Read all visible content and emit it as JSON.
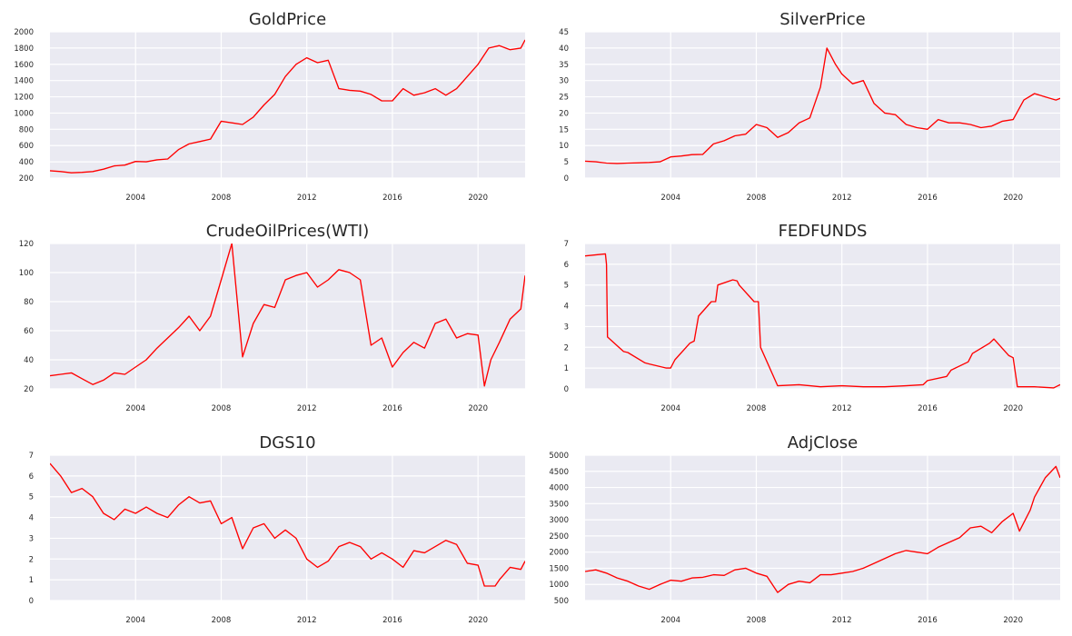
{
  "chart_data": [
    {
      "type": "line",
      "title": "GoldPrice",
      "grid": true,
      "xlim": [
        2000.0,
        2022.2
      ],
      "ylim": [
        200,
        2000
      ],
      "xticks": [
        2004,
        2008,
        2012,
        2016,
        2020
      ],
      "yticks": [
        200,
        400,
        600,
        800,
        1000,
        1200,
        1400,
        1600,
        1800,
        2000
      ],
      "color": "#ff0000",
      "x": [
        2000,
        2000.5,
        2001,
        2001.5,
        2002,
        2002.5,
        2003,
        2003.5,
        2004,
        2004.5,
        2005,
        2005.5,
        2006,
        2006.5,
        2007,
        2007.5,
        2008,
        2008.5,
        2009,
        2009.5,
        2010,
        2010.5,
        2011,
        2011.5,
        2012,
        2012.5,
        2013,
        2013.5,
        2014,
        2014.5,
        2015,
        2015.5,
        2016,
        2016.5,
        2017,
        2017.5,
        2018,
        2018.5,
        2019,
        2019.5,
        2020,
        2020.5,
        2021,
        2021.5,
        2022,
        2022.2
      ],
      "y": [
        290,
        280,
        265,
        270,
        280,
        310,
        350,
        360,
        405,
        400,
        425,
        435,
        550,
        620,
        650,
        680,
        900,
        880,
        860,
        950,
        1100,
        1230,
        1450,
        1600,
        1680,
        1620,
        1650,
        1300,
        1280,
        1270,
        1230,
        1150,
        1150,
        1300,
        1220,
        1250,
        1300,
        1220,
        1300,
        1450,
        1600,
        1800,
        1830,
        1780,
        1800,
        1900
      ]
    },
    {
      "type": "line",
      "title": "SilverPrice",
      "grid": true,
      "xlim": [
        2000.0,
        2022.2
      ],
      "ylim": [
        0,
        45
      ],
      "xticks": [
        2004,
        2008,
        2012,
        2016,
        2020
      ],
      "yticks": [
        0,
        5,
        10,
        15,
        20,
        25,
        30,
        35,
        40,
        45
      ],
      "color": "#ff0000",
      "x": [
        2000,
        2000.5,
        2001,
        2001.5,
        2002,
        2002.5,
        2003,
        2003.5,
        2004,
        2004.5,
        2005,
        2005.5,
        2006,
        2006.5,
        2007,
        2007.5,
        2008,
        2008.5,
        2009,
        2009.5,
        2010,
        2010.5,
        2011,
        2011.3,
        2011.7,
        2012,
        2012.5,
        2013,
        2013.5,
        2014,
        2014.5,
        2015,
        2015.5,
        2016,
        2016.5,
        2017,
        2017.5,
        2018,
        2018.5,
        2019,
        2019.5,
        2020,
        2020.5,
        2021,
        2021.5,
        2022,
        2022.2
      ],
      "y": [
        5.2,
        5.0,
        4.6,
        4.5,
        4.6,
        4.7,
        4.8,
        5.0,
        6.5,
        6.8,
        7.2,
        7.3,
        10.5,
        11.5,
        13.0,
        13.5,
        16.5,
        15.5,
        12.5,
        14.0,
        17.0,
        18.5,
        28.0,
        40.0,
        35.0,
        32.0,
        29.0,
        30.0,
        23.0,
        20.0,
        19.5,
        16.5,
        15.5,
        15.0,
        18.0,
        17.0,
        17.0,
        16.5,
        15.5,
        16.0,
        17.5,
        18.0,
        24.0,
        26.0,
        25.0,
        24.0,
        24.5
      ]
    },
    {
      "type": "line",
      "title": "CrudeOilPrices(WTI)",
      "grid": true,
      "xlim": [
        2000.0,
        2022.2
      ],
      "ylim": [
        20,
        120
      ],
      "xticks": [
        2004,
        2008,
        2012,
        2016,
        2020
      ],
      "yticks": [
        20,
        40,
        60,
        80,
        100,
        120
      ],
      "color": "#ff0000",
      "x": [
        2000,
        2000.5,
        2001,
        2001.5,
        2002,
        2002.5,
        2003,
        2003.5,
        2004,
        2004.5,
        2005,
        2005.5,
        2006,
        2006.5,
        2007,
        2007.5,
        2008,
        2008.5,
        2009,
        2009.5,
        2010,
        2010.5,
        2011,
        2011.5,
        2012,
        2012.5,
        2013,
        2013.5,
        2014,
        2014.5,
        2015,
        2015.5,
        2016,
        2016.5,
        2017,
        2017.5,
        2018,
        2018.5,
        2019,
        2019.5,
        2020,
        2020.3,
        2020.6,
        2021,
        2021.5,
        2022,
        2022.2
      ],
      "y": [
        29,
        30,
        31,
        27,
        23,
        26,
        31,
        30,
        35,
        40,
        48,
        55,
        62,
        70,
        60,
        70,
        95,
        120,
        42,
        65,
        78,
        76,
        95,
        98,
        100,
        90,
        95,
        102,
        100,
        95,
        50,
        55,
        35,
        45,
        52,
        48,
        65,
        68,
        55,
        58,
        57,
        22,
        40,
        52,
        68,
        75,
        98
      ]
    },
    {
      "type": "line",
      "title": "FEDFUNDS",
      "grid": true,
      "xlim": [
        2000.0,
        2022.2
      ],
      "ylim": [
        0,
        7
      ],
      "xticks": [
        2004,
        2008,
        2012,
        2016,
        2020
      ],
      "yticks": [
        0,
        1,
        2,
        3,
        4,
        5,
        6,
        7
      ],
      "color": "#ff0000",
      "x": [
        2000,
        2000.95,
        2001,
        2001.05,
        2001.8,
        2002,
        2002.8,
        2003,
        2003.8,
        2004,
        2004.2,
        2004.9,
        2005.1,
        2005.3,
        2005.9,
        2006.1,
        2006.2,
        2006.9,
        2007.1,
        2007.2,
        2007.9,
        2008.1,
        2008.2,
        2009,
        2010,
        2011,
        2012,
        2013,
        2014,
        2015,
        2015.8,
        2016,
        2016.9,
        2017.1,
        2017.9,
        2018.1,
        2018.9,
        2019.1,
        2019.8,
        2020,
        2020.2,
        2021,
        2021.9,
        2022,
        2022.2
      ],
      "y": [
        6.4,
        6.5,
        6.0,
        2.5,
        1.8,
        1.75,
        1.25,
        1.2,
        1.0,
        1.0,
        1.4,
        2.2,
        2.3,
        3.5,
        4.2,
        4.2,
        5.0,
        5.25,
        5.2,
        5.0,
        4.2,
        4.2,
        2.0,
        0.15,
        0.2,
        0.1,
        0.15,
        0.1,
        0.1,
        0.15,
        0.2,
        0.4,
        0.6,
        0.9,
        1.3,
        1.7,
        2.2,
        2.4,
        1.6,
        1.5,
        0.1,
        0.1,
        0.05,
        0.1,
        0.2
      ]
    },
    {
      "type": "line",
      "title": "DGS10",
      "grid": true,
      "xlim": [
        2000.0,
        2022.2
      ],
      "ylim": [
        0,
        7
      ],
      "xticks": [
        2004,
        2008,
        2012,
        2016,
        2020
      ],
      "yticks": [
        0,
        1,
        2,
        3,
        4,
        5,
        6,
        7
      ],
      "color": "#ff0000",
      "x": [
        2000,
        2000.5,
        2001,
        2001.5,
        2002,
        2002.5,
        2003,
        2003.5,
        2004,
        2004.5,
        2005,
        2005.5,
        2006,
        2006.5,
        2007,
        2007.5,
        2008,
        2008.5,
        2009,
        2009.5,
        2010,
        2010.5,
        2011,
        2011.5,
        2012,
        2012.5,
        2013,
        2013.5,
        2014,
        2014.5,
        2015,
        2015.5,
        2016,
        2016.5,
        2017,
        2017.5,
        2018,
        2018.5,
        2019,
        2019.5,
        2020,
        2020.3,
        2020.8,
        2021,
        2021.5,
        2022,
        2022.2
      ],
      "y": [
        6.6,
        6.0,
        5.2,
        5.4,
        5.0,
        4.2,
        3.9,
        4.4,
        4.2,
        4.5,
        4.2,
        4.0,
        4.6,
        5.0,
        4.7,
        4.8,
        3.7,
        4.0,
        2.5,
        3.5,
        3.7,
        3.0,
        3.4,
        3.0,
        2.0,
        1.6,
        1.9,
        2.6,
        2.8,
        2.6,
        2.0,
        2.3,
        2.0,
        1.6,
        2.4,
        2.3,
        2.6,
        2.9,
        2.7,
        1.8,
        1.7,
        0.7,
        0.7,
        1.0,
        1.6,
        1.5,
        1.9
      ]
    },
    {
      "type": "line",
      "title": "AdjClose",
      "grid": true,
      "xlim": [
        2000.0,
        2022.2
      ],
      "ylim": [
        500,
        5000
      ],
      "xticks": [
        2004,
        2008,
        2012,
        2016,
        2020
      ],
      "yticks": [
        500,
        1000,
        1500,
        2000,
        2500,
        3000,
        3500,
        4000,
        4500,
        5000
      ],
      "color": "#ff0000",
      "x": [
        2000,
        2000.5,
        2001,
        2001.5,
        2002,
        2002.5,
        2003,
        2003.5,
        2004,
        2004.5,
        2005,
        2005.5,
        2006,
        2006.5,
        2007,
        2007.5,
        2008,
        2008.5,
        2009,
        2009.5,
        2010,
        2010.5,
        2011,
        2011.5,
        2012,
        2012.5,
        2013,
        2013.5,
        2014,
        2014.5,
        2015,
        2015.5,
        2016,
        2016.5,
        2017,
        2017.5,
        2018,
        2018.5,
        2019,
        2019.5,
        2020,
        2020.3,
        2020.8,
        2021,
        2021.5,
        2022,
        2022.2
      ],
      "y": [
        1400,
        1450,
        1350,
        1200,
        1100,
        950,
        850,
        1000,
        1130,
        1100,
        1200,
        1220,
        1300,
        1280,
        1450,
        1500,
        1350,
        1250,
        750,
        1000,
        1100,
        1050,
        1300,
        1300,
        1350,
        1400,
        1500,
        1650,
        1800,
        1950,
        2050,
        2000,
        1950,
        2150,
        2300,
        2450,
        2750,
        2800,
        2600,
        2950,
        3200,
        2650,
        3300,
        3700,
        4300,
        4650,
        4300
      ]
    }
  ]
}
